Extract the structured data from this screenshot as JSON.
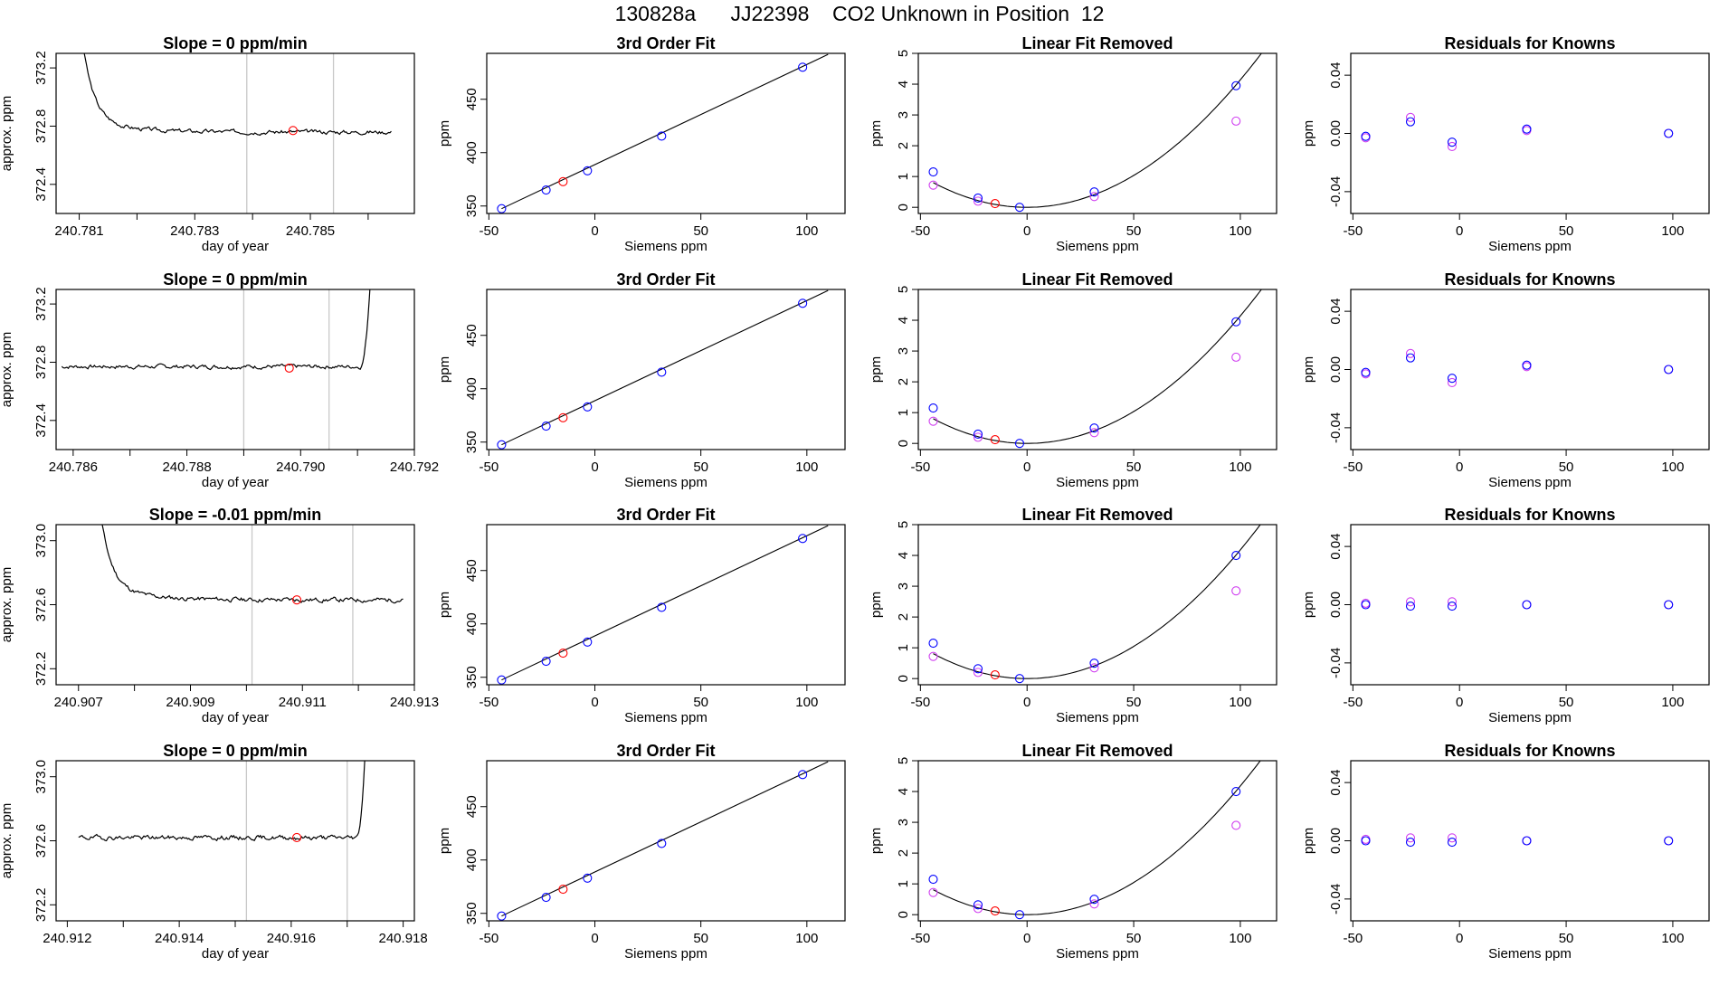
{
  "page": {
    "title": "130828a      JJ22398    CO2 Unknown in Position  12",
    "colors": {
      "trace": "#000000",
      "known": "#0000ff",
      "unknown": "#ff0000",
      "fit2": "#d040f0",
      "divider": "#c8c8c8"
    }
  },
  "chart_data": [
    {
      "type": "line",
      "panel": "timeseries",
      "row": 1,
      "title": "Slope =  0  ppm/min",
      "xlabel": "day of year",
      "ylabel": "approx. ppm",
      "xlim": [
        240.7806,
        240.7868
      ],
      "ylim": [
        372.2,
        373.3
      ],
      "xticks": [
        240.781,
        240.782,
        240.783,
        240.784,
        240.785,
        240.786
      ],
      "xtick_labels": [
        "240.781",
        "",
        "240.783",
        "",
        "240.785",
        ""
      ],
      "yticks": [
        372.4,
        372.8,
        373.2
      ],
      "ytick_labels": [
        "372.4",
        "372.8",
        "373.2"
      ],
      "vlines": [
        240.7839,
        240.7854
      ],
      "series": [
        {
          "x_start": 240.7809,
          "x_end": 240.7864,
          "y_level": 372.76,
          "start_high": true,
          "end_high": false,
          "seed": 3
        }
      ],
      "marker": {
        "x": 240.7847,
        "y": 372.77
      }
    },
    {
      "type": "scatter",
      "panel": "fit3",
      "row": 1,
      "title": "3rd Order Fit",
      "xlabel": "Siemens ppm",
      "ylabel": "ppm",
      "xlim": [
        -51,
        118
      ],
      "ylim": [
        343,
        493
      ],
      "xticks": [
        -50,
        0,
        50,
        100
      ],
      "yticks": [
        350,
        400,
        450
      ],
      "line": [
        [
          -44,
          347.5
        ],
        [
          110,
          492
        ]
      ],
      "points_known": [
        [
          -44,
          347.5
        ],
        [
          -23,
          365
        ],
        [
          -3.5,
          383
        ],
        [
          31.5,
          415.5
        ],
        [
          98,
          480
        ]
      ],
      "points_unknown": [
        [
          -15,
          372.8
        ]
      ]
    },
    {
      "type": "scatter",
      "panel": "linear_removed",
      "row": 1,
      "title": "Linear Fit Removed",
      "xlabel": "Siemens ppm",
      "ylabel": "ppm",
      "xlim": [
        -51,
        117
      ],
      "ylim": [
        -0.2,
        5.0
      ],
      "xticks": [
        -50,
        0,
        50,
        100
      ],
      "yticks": [
        0,
        1,
        2,
        3,
        4,
        5
      ],
      "curve": {
        "vertex_x": 0,
        "a": 0.000414,
        "x_from": -44,
        "x_to": 110
      },
      "points_known": [
        [
          -44,
          1.15
        ],
        [
          -23,
          0.3
        ],
        [
          -3.5,
          0.0
        ],
        [
          31.5,
          0.5
        ],
        [
          98,
          3.95
        ]
      ],
      "points_alt": [
        [
          -44,
          0.72
        ],
        [
          -23,
          0.2
        ],
        [
          31.5,
          0.35
        ],
        [
          98,
          2.8
        ]
      ],
      "points_unknown": [
        [
          -15,
          0.12
        ]
      ]
    },
    {
      "type": "scatter",
      "panel": "residuals",
      "row": 1,
      "title": "Residuals for Knowns",
      "xlabel": "Siemens ppm",
      "ylabel": "ppm",
      "xlim": [
        -51,
        117
      ],
      "ylim": [
        -0.055,
        0.055
      ],
      "xticks": [
        -50,
        0,
        50,
        100
      ],
      "yticks": [
        -0.04,
        0.0,
        0.04
      ],
      "ytick_labels": [
        "-0.04",
        "0.00",
        "0.04"
      ],
      "points_known": [
        [
          -44,
          -0.002
        ],
        [
          -23,
          0.008
        ],
        [
          -3.5,
          -0.006
        ],
        [
          31.5,
          0.003
        ],
        [
          98,
          0.0
        ]
      ],
      "points_alt": [
        [
          -44,
          -0.003
        ],
        [
          -23,
          0.011
        ],
        [
          -3.5,
          -0.009
        ],
        [
          31.5,
          0.002
        ],
        [
          98,
          0.0
        ]
      ]
    },
    {
      "type": "line",
      "panel": "timeseries",
      "row": 2,
      "title": "Slope =  0  ppm/min",
      "xlabel": "day of year",
      "ylabel": "approx. ppm",
      "xlim": [
        240.7857,
        240.792
      ],
      "ylim": [
        372.2,
        373.3
      ],
      "xticks": [
        240.786,
        240.787,
        240.788,
        240.789,
        240.79,
        240.791,
        240.792
      ],
      "xtick_labels": [
        "240.786",
        "",
        "240.788",
        "",
        "240.790",
        "",
        "240.792"
      ],
      "yticks": [
        372.4,
        372.8,
        373.2
      ],
      "ytick_labels": [
        "372.4",
        "372.8",
        "373.2"
      ],
      "vlines": [
        240.789,
        240.7905
      ],
      "series": [
        {
          "x_start": 240.7858,
          "x_end": 240.7913,
          "y_level": 372.77,
          "start_high": false,
          "end_high": true,
          "seed": 7
        }
      ],
      "marker": {
        "x": 240.7898,
        "y": 372.76
      }
    },
    {
      "type": "scatter",
      "panel": "fit3",
      "row": 2,
      "title": "3rd Order Fit",
      "xlabel": "Siemens ppm",
      "ylabel": "ppm",
      "xlim": [
        -51,
        118
      ],
      "ylim": [
        343,
        493
      ],
      "xticks": [
        -50,
        0,
        50,
        100
      ],
      "yticks": [
        350,
        400,
        450
      ],
      "line": [
        [
          -44,
          347.5
        ],
        [
          110,
          492
        ]
      ],
      "points_known": [
        [
          -44,
          347.5
        ],
        [
          -23,
          365
        ],
        [
          -3.5,
          383
        ],
        [
          31.5,
          415.5
        ],
        [
          98,
          480
        ]
      ],
      "points_unknown": [
        [
          -15,
          372.8
        ]
      ]
    },
    {
      "type": "scatter",
      "panel": "linear_removed",
      "row": 2,
      "title": "Linear Fit Removed",
      "xlabel": "Siemens ppm",
      "ylabel": "ppm",
      "xlim": [
        -51,
        117
      ],
      "ylim": [
        -0.2,
        5.0
      ],
      "xticks": [
        -50,
        0,
        50,
        100
      ],
      "yticks": [
        0,
        1,
        2,
        3,
        4,
        5
      ],
      "curve": {
        "vertex_x": 0,
        "a": 0.000414,
        "x_from": -44,
        "x_to": 110
      },
      "points_known": [
        [
          -44,
          1.15
        ],
        [
          -23,
          0.3
        ],
        [
          -3.5,
          0.0
        ],
        [
          31.5,
          0.5
        ],
        [
          98,
          3.95
        ]
      ],
      "points_alt": [
        [
          -44,
          0.72
        ],
        [
          -23,
          0.2
        ],
        [
          31.5,
          0.35
        ],
        [
          98,
          2.8
        ]
      ],
      "points_unknown": [
        [
          -15,
          0.12
        ]
      ]
    },
    {
      "type": "scatter",
      "panel": "residuals",
      "row": 2,
      "title": "Residuals for Knowns",
      "xlabel": "Siemens ppm",
      "ylabel": "ppm",
      "xlim": [
        -51,
        117
      ],
      "ylim": [
        -0.055,
        0.055
      ],
      "xticks": [
        -50,
        0,
        50,
        100
      ],
      "yticks": [
        -0.04,
        0.0,
        0.04
      ],
      "ytick_labels": [
        "-0.04",
        "0.00",
        "0.04"
      ],
      "points_known": [
        [
          -44,
          -0.002
        ],
        [
          -23,
          0.008
        ],
        [
          -3.5,
          -0.006
        ],
        [
          31.5,
          0.003
        ],
        [
          98,
          0.0
        ]
      ],
      "points_alt": [
        [
          -44,
          -0.003
        ],
        [
          -23,
          0.011
        ],
        [
          -3.5,
          -0.009
        ],
        [
          31.5,
          0.002
        ],
        [
          98,
          0.0
        ]
      ]
    },
    {
      "type": "line",
      "panel": "timeseries",
      "row": 3,
      "title": "Slope =  -0.01  ppm/min",
      "xlabel": "day of year",
      "ylabel": "approx. ppm",
      "xlim": [
        240.9066,
        240.913
      ],
      "ylim": [
        372.1,
        373.1
      ],
      "xticks": [
        240.907,
        240.908,
        240.909,
        240.91,
        240.911,
        240.912,
        240.913
      ],
      "xtick_labels": [
        "240.907",
        "",
        "240.909",
        "",
        "240.911",
        "",
        "240.913"
      ],
      "yticks": [
        372.2,
        372.6,
        373.0
      ],
      "ytick_labels": [
        "372.2",
        "372.6",
        "373.0"
      ],
      "vlines": [
        240.9101,
        240.9119
      ],
      "series": [
        {
          "x_start": 240.9072,
          "x_end": 240.9128,
          "y_level": 372.63,
          "start_high": true,
          "end_high": false,
          "seed": 11
        }
      ],
      "marker": {
        "x": 240.9109,
        "y": 372.63
      }
    },
    {
      "type": "scatter",
      "panel": "fit3",
      "row": 3,
      "title": "3rd Order Fit",
      "xlabel": "Siemens ppm",
      "ylabel": "ppm",
      "xlim": [
        -51,
        118
      ],
      "ylim": [
        343,
        493
      ],
      "xticks": [
        -50,
        0,
        50,
        100
      ],
      "yticks": [
        350,
        400,
        450
      ],
      "line": [
        [
          -44,
          347.5
        ],
        [
          110,
          492
        ]
      ],
      "points_known": [
        [
          -44,
          347.5
        ],
        [
          -23,
          365
        ],
        [
          -3.5,
          383
        ],
        [
          31.5,
          415.5
        ],
        [
          98,
          480
        ]
      ],
      "points_unknown": [
        [
          -15,
          372.6
        ]
      ]
    },
    {
      "type": "scatter",
      "panel": "linear_removed",
      "row": 3,
      "title": "Linear Fit Removed",
      "xlabel": "Siemens ppm",
      "ylabel": "ppm",
      "xlim": [
        -51,
        117
      ],
      "ylim": [
        -0.2,
        5.0
      ],
      "xticks": [
        -50,
        0,
        50,
        100
      ],
      "yticks": [
        0,
        1,
        2,
        3,
        4,
        5
      ],
      "curve": {
        "vertex_x": 0,
        "a": 0.000418,
        "x_from": -44,
        "x_to": 110
      },
      "points_known": [
        [
          -44,
          1.15
        ],
        [
          -23,
          0.32
        ],
        [
          -3.5,
          0.0
        ],
        [
          31.5,
          0.5
        ],
        [
          98,
          4.0
        ]
      ],
      "points_alt": [
        [
          -44,
          0.72
        ],
        [
          -23,
          0.2
        ],
        [
          31.5,
          0.35
        ],
        [
          98,
          2.85
        ]
      ],
      "points_unknown": [
        [
          -15,
          0.12
        ]
      ]
    },
    {
      "type": "scatter",
      "panel": "residuals",
      "row": 3,
      "title": "Residuals for Knowns",
      "xlabel": "Siemens ppm",
      "ylabel": "ppm",
      "xlim": [
        -51,
        117
      ],
      "ylim": [
        -0.055,
        0.055
      ],
      "xticks": [
        -50,
        0,
        50,
        100
      ],
      "yticks": [
        -0.04,
        0.0,
        0.04
      ],
      "ytick_labels": [
        "-0.04",
        "0.00",
        "0.04"
      ],
      "points_known": [
        [
          -44,
          0.0
        ],
        [
          -23,
          -0.001
        ],
        [
          -3.5,
          -0.001
        ],
        [
          31.5,
          0.0
        ],
        [
          98,
          0.0
        ]
      ],
      "points_alt": [
        [
          -44,
          0.001
        ],
        [
          -23,
          0.002
        ],
        [
          -3.5,
          0.002
        ],
        [
          31.5,
          0.0
        ],
        [
          98,
          0.0
        ]
      ]
    },
    {
      "type": "line",
      "panel": "timeseries",
      "row": 4,
      "title": "Slope =  0  ppm/min",
      "xlabel": "day of year",
      "ylabel": "approx. ppm",
      "xlim": [
        240.9118,
        240.9182
      ],
      "ylim": [
        372.1,
        373.1
      ],
      "xticks": [
        240.912,
        240.913,
        240.914,
        240.915,
        240.916,
        240.917,
        240.918
      ],
      "xtick_labels": [
        "240.912",
        "",
        "240.914",
        "",
        "240.916",
        "",
        "240.918"
      ],
      "yticks": [
        372.2,
        372.6,
        373.0
      ],
      "ytick_labels": [
        "372.2",
        "372.6",
        "373.0"
      ],
      "vlines": [
        240.9152,
        240.917
      ],
      "series": [
        {
          "x_start": 240.9122,
          "x_end": 240.9174,
          "y_level": 372.62,
          "start_high": false,
          "end_high": true,
          "seed": 19
        }
      ],
      "marker": {
        "x": 240.9161,
        "y": 372.62
      }
    },
    {
      "type": "scatter",
      "panel": "fit3",
      "row": 4,
      "title": "3rd Order Fit",
      "xlabel": "Siemens ppm",
      "ylabel": "ppm",
      "xlim": [
        -51,
        118
      ],
      "ylim": [
        343,
        493
      ],
      "xticks": [
        -50,
        0,
        50,
        100
      ],
      "yticks": [
        350,
        400,
        450
      ],
      "line": [
        [
          -44,
          347.5
        ],
        [
          110,
          492
        ]
      ],
      "points_known": [
        [
          -44,
          347.5
        ],
        [
          -23,
          365
        ],
        [
          -3.5,
          383
        ],
        [
          31.5,
          415.5
        ],
        [
          98,
          480
        ]
      ],
      "points_unknown": [
        [
          -15,
          372.6
        ]
      ]
    },
    {
      "type": "scatter",
      "panel": "linear_removed",
      "row": 4,
      "title": "Linear Fit Removed",
      "xlabel": "Siemens ppm",
      "ylabel": "ppm",
      "xlim": [
        -51,
        117
      ],
      "ylim": [
        -0.2,
        5.0
      ],
      "xticks": [
        -50,
        0,
        50,
        100
      ],
      "yticks": [
        0,
        1,
        2,
        3,
        4,
        5
      ],
      "curve": {
        "vertex_x": 0,
        "a": 0.000418,
        "x_from": -44,
        "x_to": 110
      },
      "points_known": [
        [
          -44,
          1.15
        ],
        [
          -23,
          0.32
        ],
        [
          -3.5,
          0.0
        ],
        [
          31.5,
          0.5
        ],
        [
          98,
          4.0
        ]
      ],
      "points_alt": [
        [
          -44,
          0.72
        ],
        [
          -23,
          0.2
        ],
        [
          31.5,
          0.35
        ],
        [
          98,
          2.9
        ]
      ],
      "points_unknown": [
        [
          -15,
          0.12
        ]
      ]
    },
    {
      "type": "scatter",
      "panel": "residuals",
      "row": 4,
      "title": "Residuals for Knowns",
      "xlabel": "Siemens ppm",
      "ylabel": "ppm",
      "xlim": [
        -51,
        117
      ],
      "ylim": [
        -0.055,
        0.055
      ],
      "xticks": [
        -50,
        0,
        50,
        100
      ],
      "yticks": [
        -0.04,
        0.0,
        0.04
      ],
      "ytick_labels": [
        "-0.04",
        "0.00",
        "0.04"
      ],
      "points_known": [
        [
          -44,
          0.0
        ],
        [
          -23,
          -0.001
        ],
        [
          -3.5,
          -0.001
        ],
        [
          31.5,
          0.0
        ],
        [
          98,
          0.0
        ]
      ],
      "points_alt": [
        [
          -44,
          0.001
        ],
        [
          -23,
          0.002
        ],
        [
          -3.5,
          0.002
        ],
        [
          31.5,
          0.0
        ],
        [
          98,
          0.0
        ]
      ]
    }
  ]
}
